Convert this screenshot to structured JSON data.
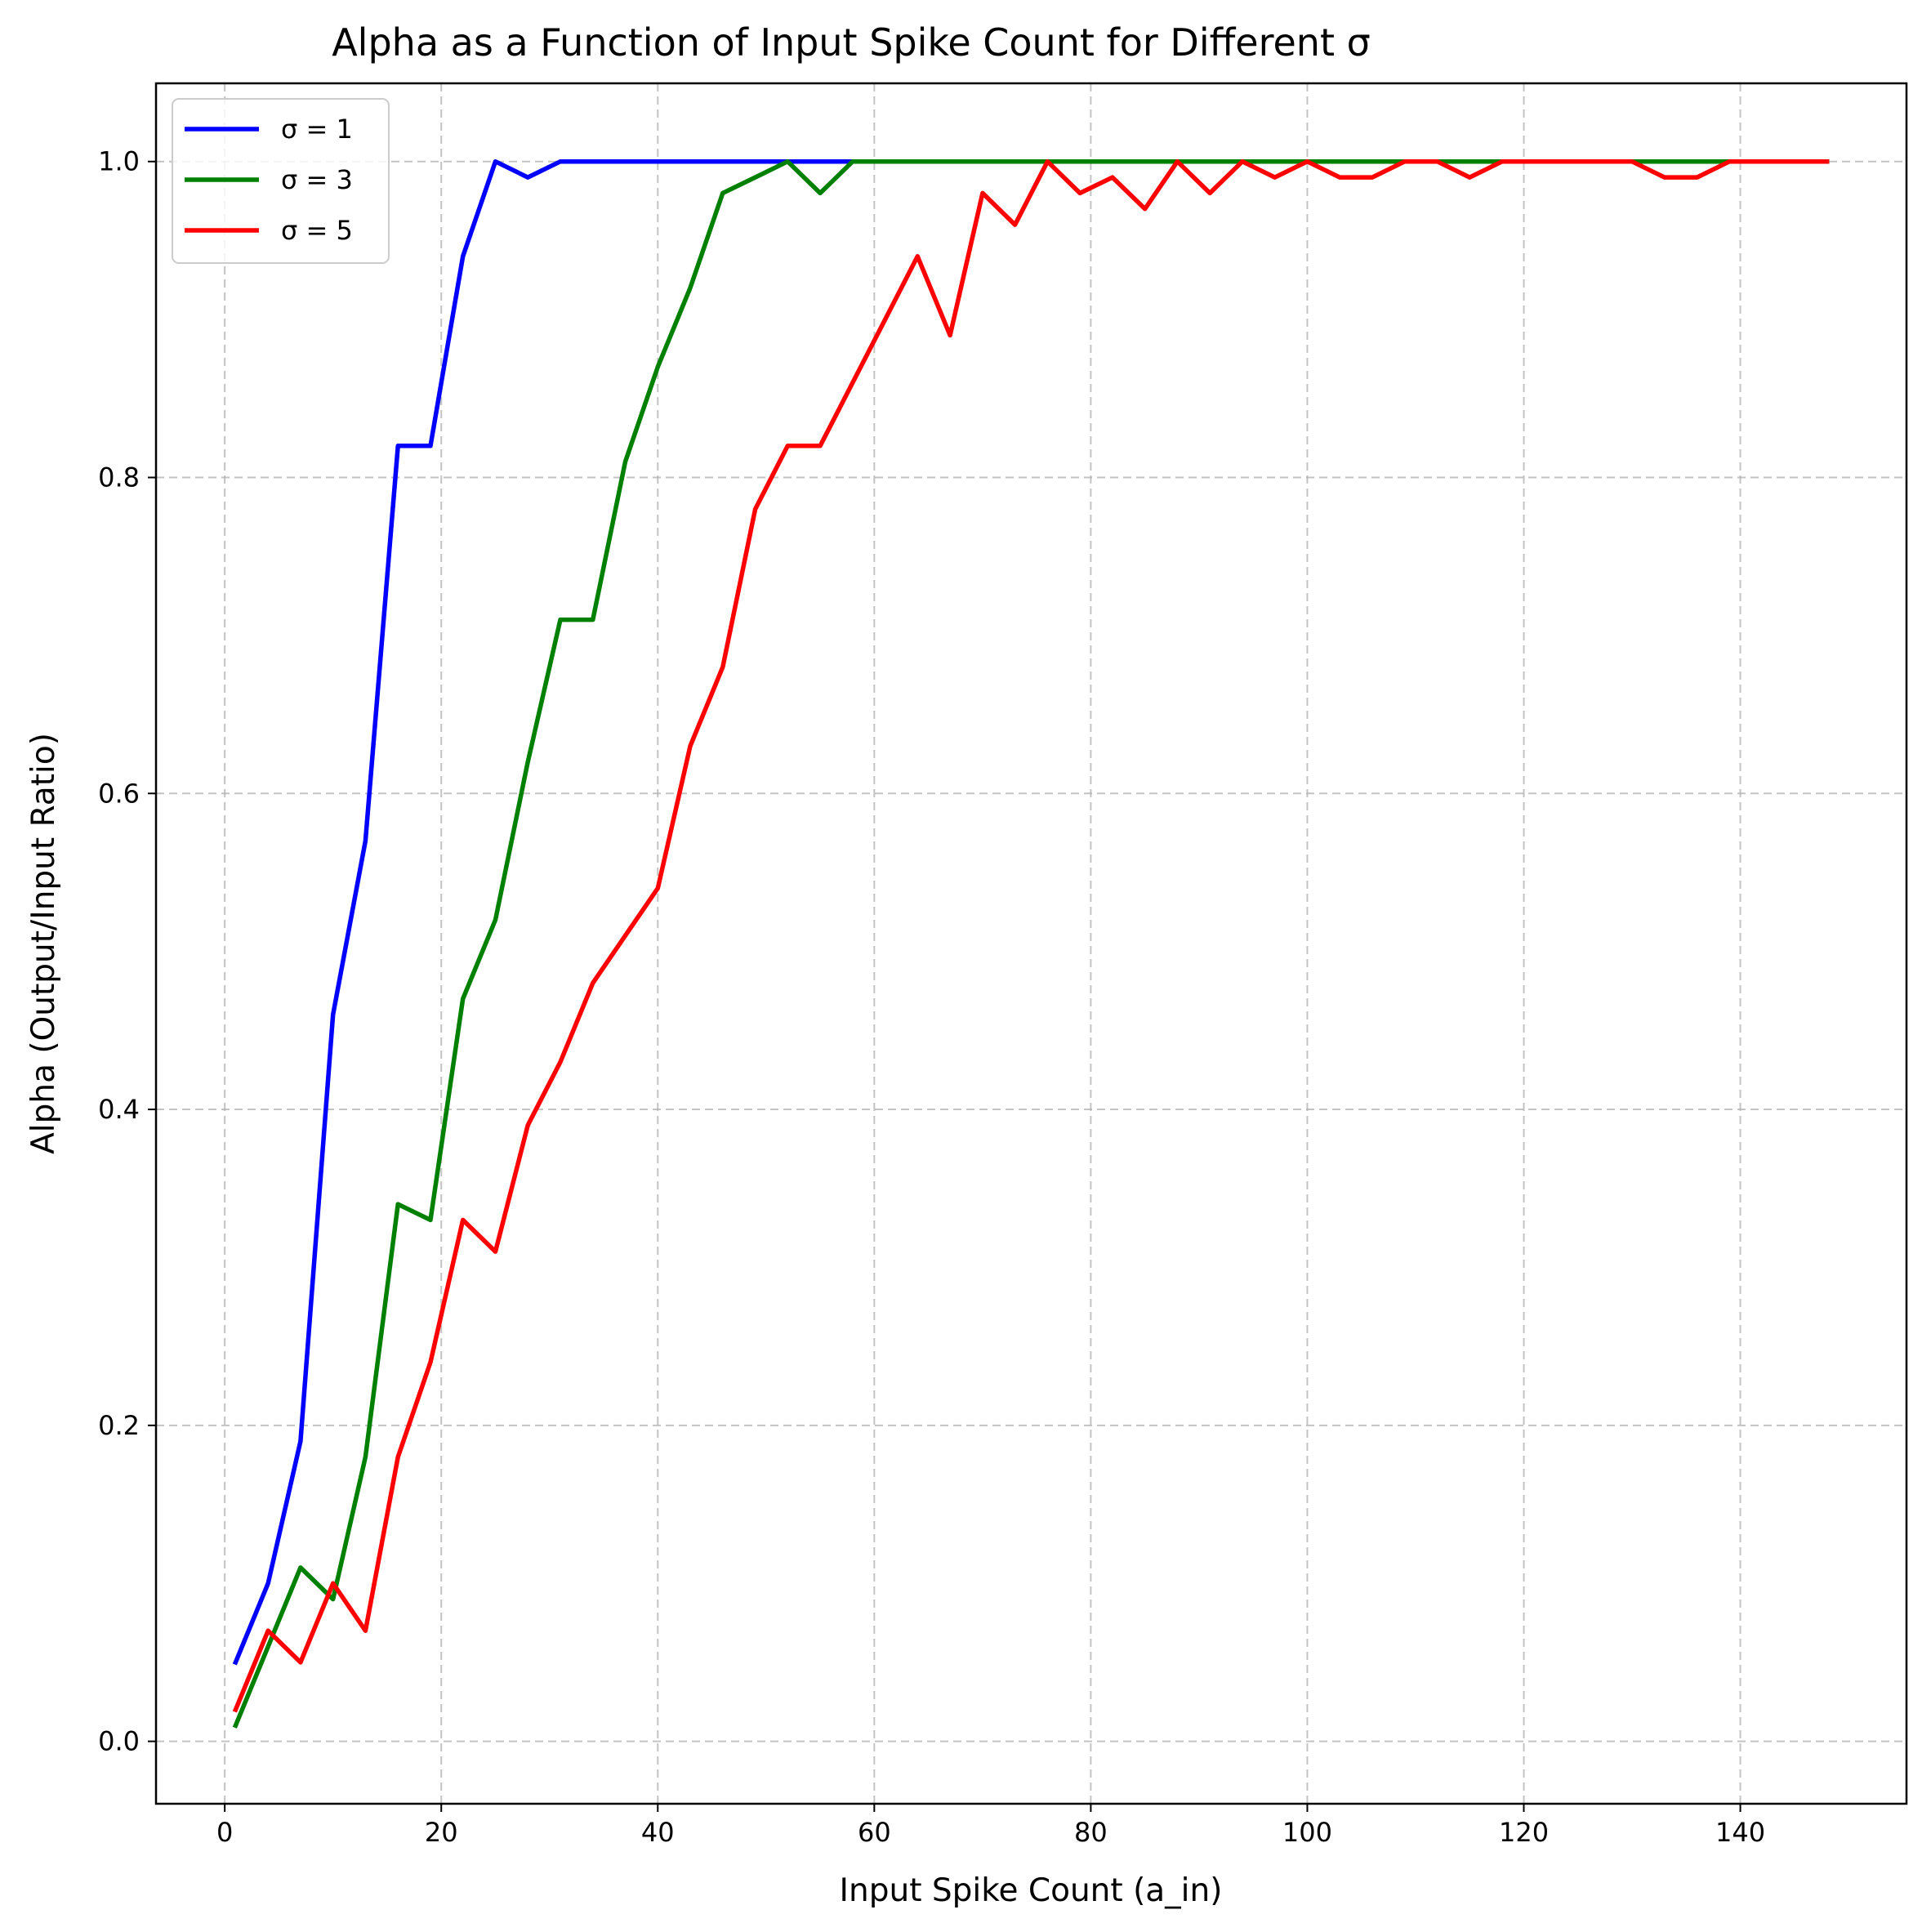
{
  "chart_data": {
    "type": "line",
    "title": "Alpha as a Function of Input Spike Count for Different σ",
    "xlabel": "Input Spike Count (a_in)",
    "ylabel": "Alpha (Output/Input Ratio)",
    "xlim": [
      -6.35,
      155.35
    ],
    "ylim": [
      -0.0395,
      1.0495
    ],
    "xticks": [
      0,
      20,
      40,
      60,
      80,
      100,
      120,
      140
    ],
    "xtick_labels": [
      "0",
      "20",
      "40",
      "60",
      "80",
      "100",
      "120",
      "140"
    ],
    "yticks": [
      0.0,
      0.2,
      0.4,
      0.6,
      0.8,
      1.0
    ],
    "ytick_labels": [
      "0.0",
      "0.2",
      "0.4",
      "0.6",
      "0.8",
      "1.0"
    ],
    "grid": true,
    "legend_position": "top-left",
    "x": [
      1,
      4,
      7,
      10,
      13,
      16,
      19,
      22,
      25,
      28,
      31,
      34,
      37,
      40,
      43,
      46,
      49,
      52,
      55,
      58,
      61,
      64,
      67,
      70,
      73,
      76,
      79,
      82,
      85,
      88,
      91,
      94,
      97,
      100,
      103,
      106,
      109,
      112,
      115,
      118,
      121,
      124,
      127,
      130,
      133,
      136,
      139,
      142,
      145,
      148
    ],
    "series": [
      {
        "name": "σ = 1",
        "color": "#0000ff",
        "values": [
          0.05,
          0.1,
          0.19,
          0.46,
          0.57,
          0.82,
          0.82,
          0.94,
          1.0,
          0.99,
          1.0,
          1.0,
          1.0,
          1.0,
          1.0,
          1.0,
          1.0,
          1.0,
          1.0,
          1.0,
          1.0,
          1.0,
          1.0,
          1.0,
          1.0,
          1.0,
          1.0,
          1.0,
          1.0,
          1.0,
          1.0,
          1.0,
          1.0,
          1.0,
          1.0,
          1.0,
          1.0,
          1.0,
          1.0,
          1.0,
          1.0,
          1.0,
          1.0,
          1.0,
          1.0,
          1.0,
          1.0,
          1.0,
          1.0,
          1.0
        ]
      },
      {
        "name": "σ = 3",
        "color": "#008000",
        "values": [
          0.01,
          0.06,
          0.11,
          0.09,
          0.18,
          0.34,
          0.33,
          0.47,
          0.52,
          0.62,
          0.71,
          0.71,
          0.81,
          0.87,
          0.92,
          0.98,
          0.99,
          1.0,
          0.98,
          1.0,
          1.0,
          1.0,
          1.0,
          1.0,
          1.0,
          1.0,
          1.0,
          1.0,
          1.0,
          1.0,
          1.0,
          1.0,
          1.0,
          1.0,
          1.0,
          1.0,
          1.0,
          1.0,
          1.0,
          1.0,
          1.0,
          1.0,
          1.0,
          1.0,
          1.0,
          1.0,
          1.0,
          1.0,
          1.0,
          1.0
        ]
      },
      {
        "name": "σ = 5",
        "color": "#ff0000",
        "values": [
          0.02,
          0.07,
          0.05,
          0.1,
          0.07,
          0.18,
          0.24,
          0.33,
          0.31,
          0.39,
          0.43,
          0.48,
          0.51,
          0.54,
          0.63,
          0.68,
          0.78,
          0.82,
          0.82,
          0.86,
          0.9,
          0.94,
          0.89,
          0.98,
          0.96,
          1.0,
          0.98,
          0.99,
          0.97,
          1.0,
          0.98,
          1.0,
          0.99,
          1.0,
          0.99,
          0.99,
          1.0,
          1.0,
          0.99,
          1.0,
          1.0,
          1.0,
          1.0,
          1.0,
          0.99,
          0.99,
          1.0,
          1.0,
          1.0,
          1.0
        ]
      }
    ]
  }
}
